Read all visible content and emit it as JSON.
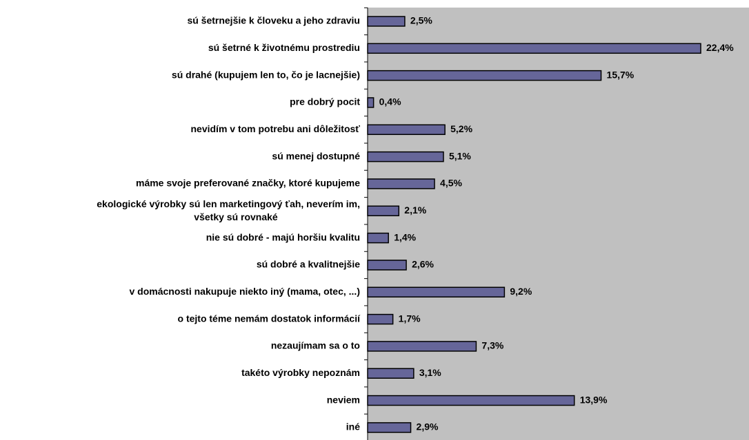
{
  "chart_data": {
    "type": "bar",
    "orientation": "horizontal",
    "categories": [
      "sú šetrnejšie k človeku a jeho zdraviu",
      "sú šetrné k životnému prostrediu",
      "sú drahé (kupujem len to, čo je lacnejšie)",
      "pre dobrý pocit",
      "nevidím v tom potrebu ani dôležitosť",
      "sú menej dostupné",
      "máme svoje preferované značky, ktoré kupujeme",
      "ekologické výrobky sú len marketingový ťah, neverím im,\nvšetky sú rovnaké",
      "nie sú dobré - majú horšiu kvalitu",
      "sú dobré a kvalitnejšie",
      "v domácnosti nakupuje niekto iný (mama, otec, ...)",
      "o tejto téme nemám dostatok informácií",
      "nezaujímam sa o to",
      "takéto výrobky nepoznám",
      "neviem",
      "iné"
    ],
    "values": [
      2.5,
      22.4,
      15.7,
      0.4,
      5.2,
      5.1,
      4.5,
      2.1,
      1.4,
      2.6,
      9.2,
      1.7,
      7.3,
      3.1,
      13.9,
      2.9
    ],
    "value_labels": [
      "2,5%",
      "22,4%",
      "15,7%",
      "0,4%",
      "5,2%",
      "5,1%",
      "4,5%",
      "2,1%",
      "1,4%",
      "2,6%",
      "9,2%",
      "1,7%",
      "7,3%",
      "3,1%",
      "13,9%",
      "2,9%"
    ],
    "color": "#666699",
    "xlim": [
      0,
      25.6
    ]
  }
}
